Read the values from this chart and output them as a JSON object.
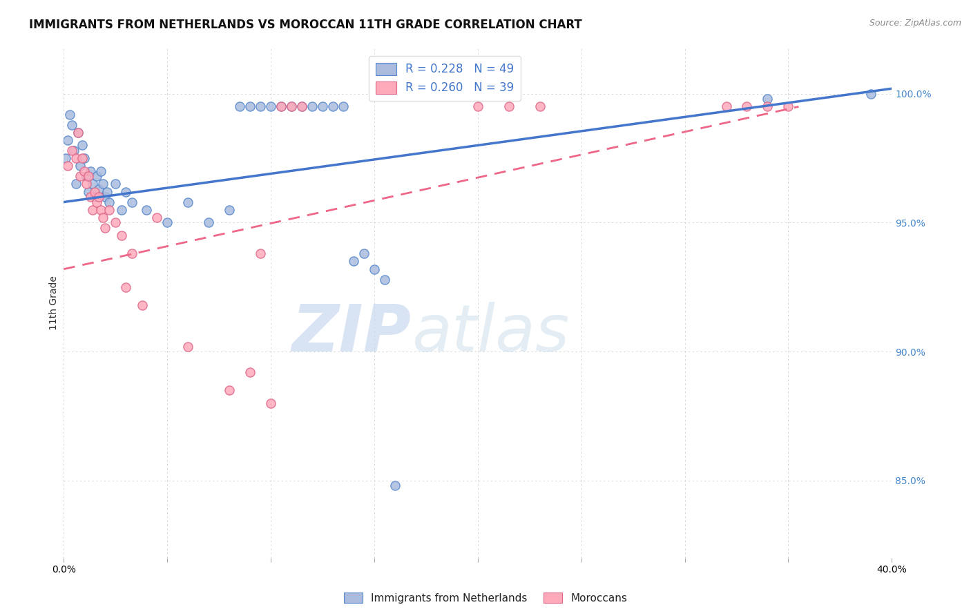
{
  "title": "IMMIGRANTS FROM NETHERLANDS VS MOROCCAN 11TH GRADE CORRELATION CHART",
  "source": "Source: ZipAtlas.com",
  "ylabel": "11th Grade",
  "yticks": [
    85.0,
    90.0,
    95.0,
    100.0
  ],
  "ytick_labels": [
    "85.0%",
    "90.0%",
    "95.0%",
    "100.0%"
  ],
  "xlim": [
    0.0,
    0.4
  ],
  "ylim": [
    82.0,
    101.8
  ],
  "legend_blue_label": "R = 0.228   N = 49",
  "legend_pink_label": "R = 0.260   N = 39",
  "legend_sub_blue": "Immigrants from Netherlands",
  "legend_sub_pink": "Moroccans",
  "blue_fill": "#aabbdd",
  "blue_edge": "#5588cc",
  "pink_fill": "#ffaabb",
  "pink_edge": "#dd6688",
  "trend_blue_color": "#4477cc",
  "trend_pink_color": "#ee6688",
  "blue_scatter_x": [
    0.001,
    0.002,
    0.003,
    0.004,
    0.005,
    0.006,
    0.007,
    0.008,
    0.009,
    0.01,
    0.011,
    0.012,
    0.013,
    0.014,
    0.015,
    0.016,
    0.017,
    0.018,
    0.019,
    0.02,
    0.021,
    0.022,
    0.025,
    0.028,
    0.03,
    0.033,
    0.04,
    0.05,
    0.06,
    0.07,
    0.08,
    0.085,
    0.09,
    0.095,
    0.1,
    0.105,
    0.11,
    0.115,
    0.12,
    0.125,
    0.13,
    0.135,
    0.14,
    0.145,
    0.15,
    0.155,
    0.16,
    0.34,
    0.39
  ],
  "blue_scatter_y": [
    97.5,
    98.2,
    99.2,
    98.8,
    97.8,
    96.5,
    98.5,
    97.2,
    98.0,
    97.5,
    96.8,
    96.2,
    97.0,
    96.5,
    96.0,
    96.8,
    96.3,
    97.0,
    96.5,
    96.0,
    96.2,
    95.8,
    96.5,
    95.5,
    96.2,
    95.8,
    95.5,
    95.0,
    95.8,
    95.0,
    95.5,
    99.5,
    99.5,
    99.5,
    99.5,
    99.5,
    99.5,
    99.5,
    99.5,
    99.5,
    99.5,
    99.5,
    93.5,
    93.8,
    93.2,
    92.8,
    84.8,
    99.8,
    100.0
  ],
  "pink_scatter_x": [
    0.002,
    0.004,
    0.006,
    0.007,
    0.008,
    0.009,
    0.01,
    0.011,
    0.012,
    0.013,
    0.014,
    0.015,
    0.016,
    0.017,
    0.018,
    0.019,
    0.02,
    0.022,
    0.025,
    0.028,
    0.03,
    0.033,
    0.038,
    0.045,
    0.06,
    0.08,
    0.09,
    0.095,
    0.1,
    0.105,
    0.11,
    0.115,
    0.2,
    0.215,
    0.23,
    0.32,
    0.33,
    0.34,
    0.35
  ],
  "pink_scatter_y": [
    97.2,
    97.8,
    97.5,
    98.5,
    96.8,
    97.5,
    97.0,
    96.5,
    96.8,
    96.0,
    95.5,
    96.2,
    95.8,
    96.0,
    95.5,
    95.2,
    94.8,
    95.5,
    95.0,
    94.5,
    92.5,
    93.8,
    91.8,
    95.2,
    90.2,
    88.5,
    89.2,
    93.8,
    88.0,
    99.5,
    99.5,
    99.5,
    99.5,
    99.5,
    99.5,
    99.5,
    99.5,
    99.5,
    99.5
  ],
  "blue_trend_x": [
    0.0,
    0.4
  ],
  "blue_trend_y": [
    95.8,
    100.2
  ],
  "pink_trend_x": [
    0.0,
    0.355
  ],
  "pink_trend_y": [
    93.2,
    99.5
  ],
  "watermark_zip": "ZIP",
  "watermark_atlas": "atlas",
  "background_color": "#ffffff",
  "title_fontsize": 12,
  "axis_label_fontsize": 10,
  "tick_fontsize": 10
}
